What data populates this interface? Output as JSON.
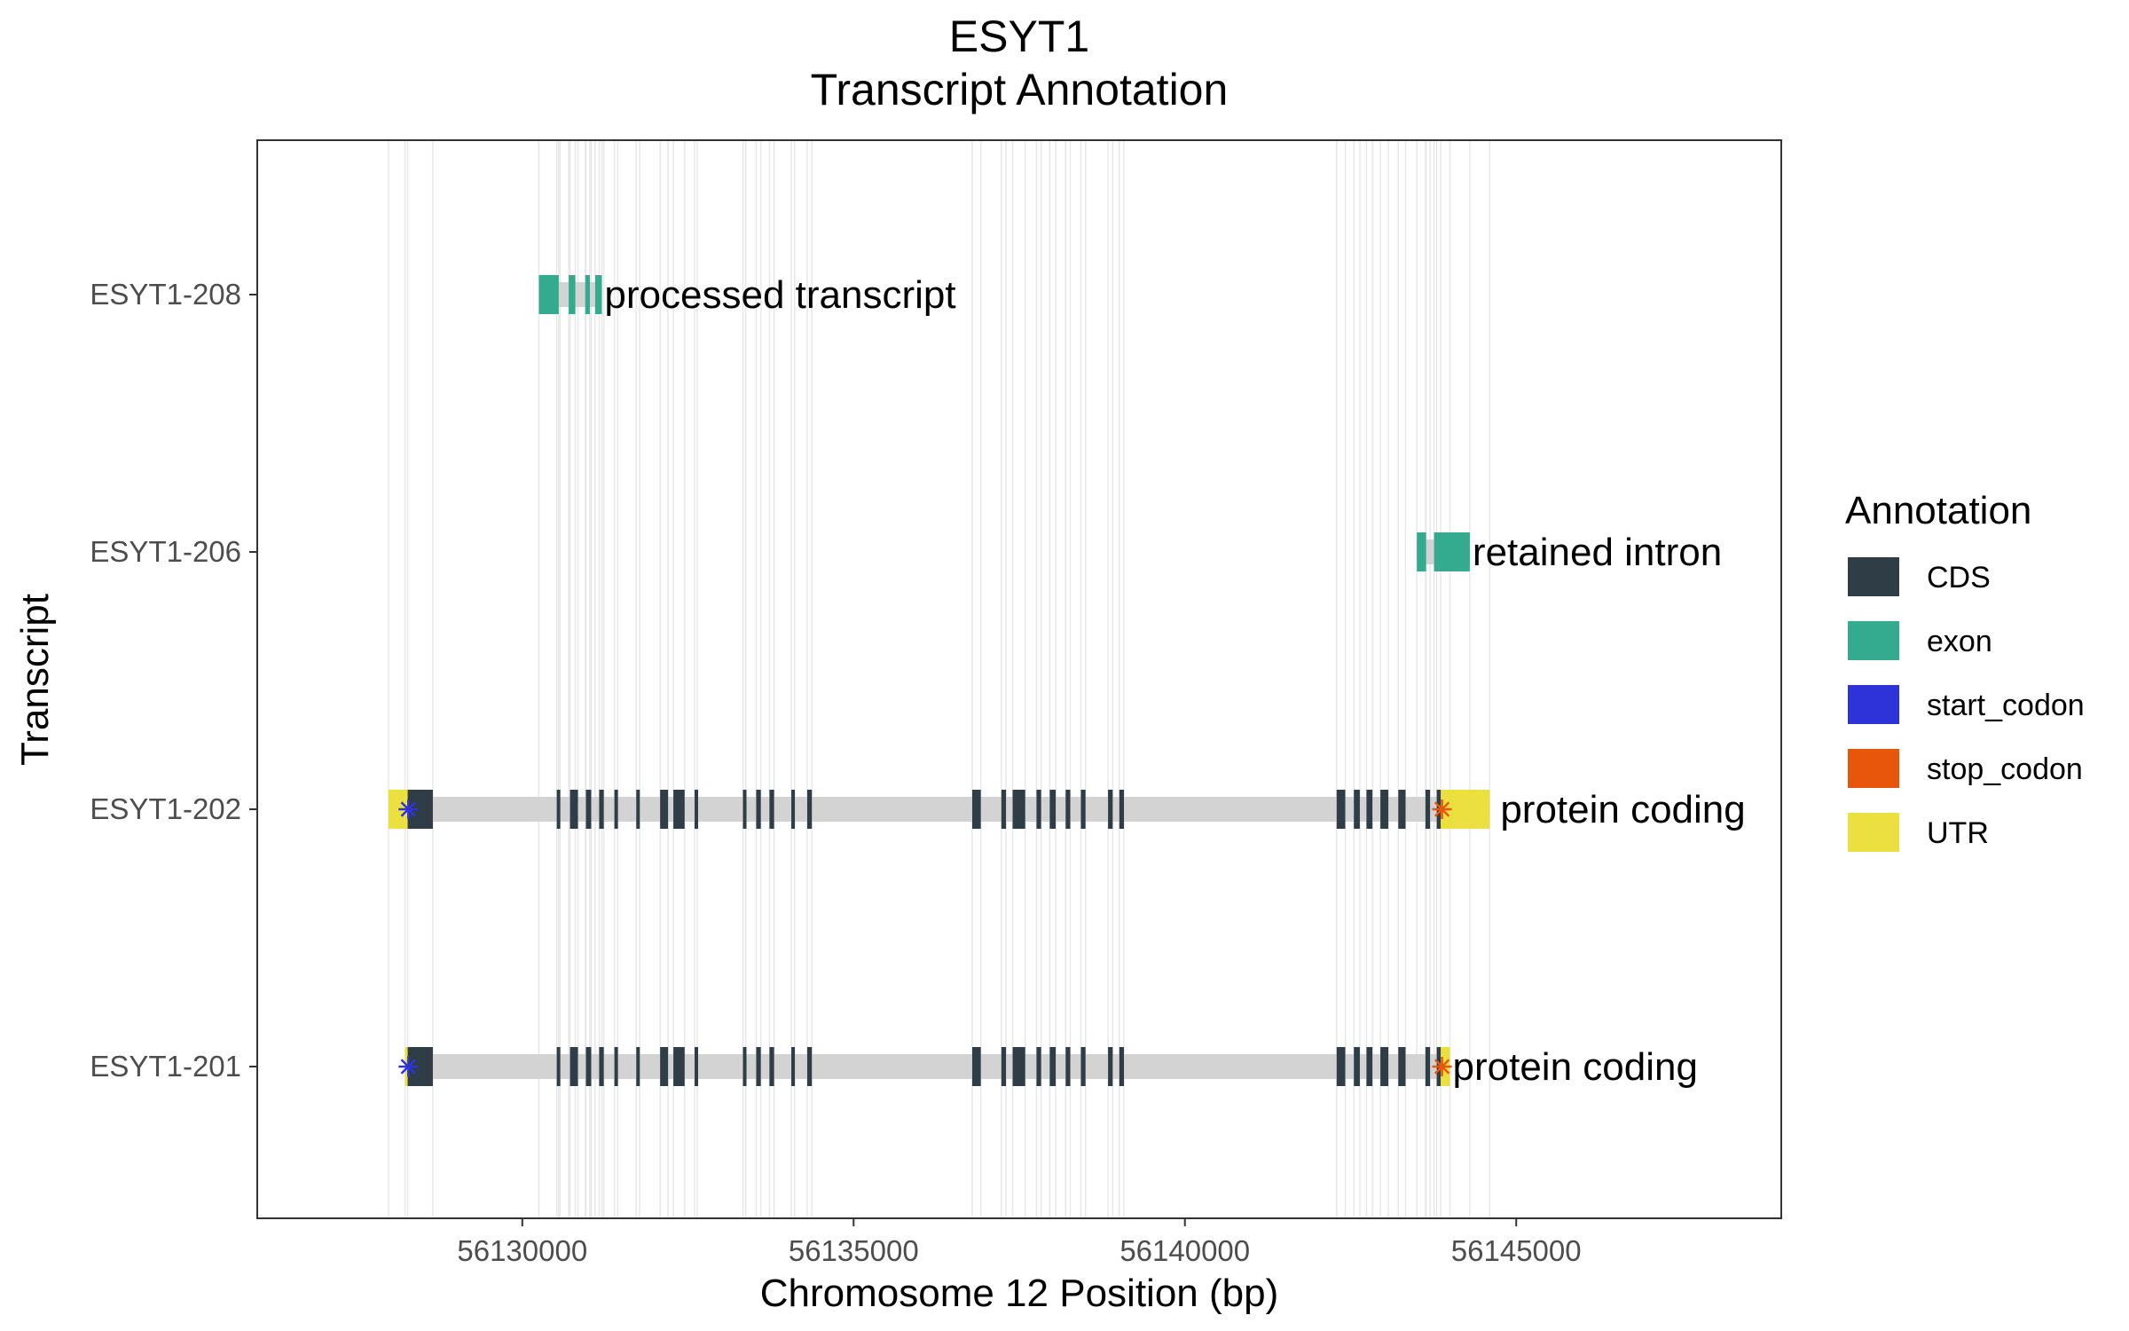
{
  "chart_data": {
    "type": "gene-structure",
    "title": [
      "ESYT1",
      "Transcript Annotation"
    ],
    "xlabel": "Chromosome 12 Position (bp)",
    "ylabel": "Transcript",
    "xlim": [
      56126000,
      56149000
    ],
    "x_ticks": [
      56130000,
      56135000,
      56140000,
      56145000
    ],
    "x_tick_labels": [
      "56130000",
      "56135000",
      "56140000",
      "56145000"
    ],
    "grid": "vertical lines at exon boundaries",
    "legend": {
      "title": "Annotation",
      "position": "right",
      "items": [
        {
          "key": "CDS",
          "label": "CDS",
          "color": "#2f3d47"
        },
        {
          "key": "exon",
          "label": "exon",
          "color": "#34ab8f"
        },
        {
          "key": "start_codon",
          "label": "start_codon",
          "color": "#2e33d9"
        },
        {
          "key": "stop_codon",
          "label": "stop_codon",
          "color": "#e8560c"
        },
        {
          "key": "UTR",
          "label": "UTR",
          "color": "#ebe040"
        }
      ]
    },
    "intron_color": "#d3d3d3",
    "grid_color": "#e8e8e8",
    "transcripts": [
      {
        "name": "ESYT1-208",
        "biotype": "processed transcript",
        "span": [
          56130250,
          56131200
        ],
        "features": [
          {
            "type": "exon",
            "start": 56130250,
            "end": 56130550
          },
          {
            "type": "exon",
            "start": 56130700,
            "end": 56130800
          },
          {
            "type": "exon",
            "start": 56130950,
            "end": 56131020
          },
          {
            "type": "exon",
            "start": 56131100,
            "end": 56131200
          }
        ]
      },
      {
        "name": "ESYT1-206",
        "biotype": "retained intron",
        "span": [
          56143500,
          56144300
        ],
        "features": [
          {
            "type": "exon",
            "start": 56143500,
            "end": 56143640
          },
          {
            "type": "exon",
            "start": 56143760,
            "end": 56144300
          }
        ]
      },
      {
        "name": "ESYT1-202",
        "biotype": "protein coding",
        "span": [
          56127980,
          56144600
        ],
        "features": [
          {
            "type": "UTR",
            "start": 56127980,
            "end": 56128270
          },
          {
            "type": "CDS",
            "start": 56128270,
            "end": 56128650
          },
          {
            "type": "CDS",
            "start": 56130520,
            "end": 56130570
          },
          {
            "type": "CDS",
            "start": 56130720,
            "end": 56130840
          },
          {
            "type": "CDS",
            "start": 56130960,
            "end": 56131040
          },
          {
            "type": "CDS",
            "start": 56131160,
            "end": 56131230
          },
          {
            "type": "CDS",
            "start": 56131390,
            "end": 56131440
          },
          {
            "type": "CDS",
            "start": 56131720,
            "end": 56131770
          },
          {
            "type": "CDS",
            "start": 56132080,
            "end": 56132200
          },
          {
            "type": "CDS",
            "start": 56132280,
            "end": 56132450
          },
          {
            "type": "CDS",
            "start": 56132600,
            "end": 56132640
          },
          {
            "type": "CDS",
            "start": 56133330,
            "end": 56133370
          },
          {
            "type": "CDS",
            "start": 56133530,
            "end": 56133600
          },
          {
            "type": "CDS",
            "start": 56133730,
            "end": 56133800
          },
          {
            "type": "CDS",
            "start": 56134060,
            "end": 56134110
          },
          {
            "type": "CDS",
            "start": 56134300,
            "end": 56134370
          },
          {
            "type": "CDS",
            "start": 56136790,
            "end": 56136920
          },
          {
            "type": "CDS",
            "start": 56137230,
            "end": 56137300
          },
          {
            "type": "CDS",
            "start": 56137400,
            "end": 56137590
          },
          {
            "type": "CDS",
            "start": 56137760,
            "end": 56137830
          },
          {
            "type": "CDS",
            "start": 56137960,
            "end": 56138050
          },
          {
            "type": "CDS",
            "start": 56138200,
            "end": 56138270
          },
          {
            "type": "CDS",
            "start": 56138430,
            "end": 56138500
          },
          {
            "type": "CDS",
            "start": 56138840,
            "end": 56138910
          },
          {
            "type": "CDS",
            "start": 56139010,
            "end": 56139080
          },
          {
            "type": "CDS",
            "start": 56142290,
            "end": 56142420
          },
          {
            "type": "CDS",
            "start": 56142550,
            "end": 56142640
          },
          {
            "type": "CDS",
            "start": 56142740,
            "end": 56142830
          },
          {
            "type": "CDS",
            "start": 56142950,
            "end": 56143070
          },
          {
            "type": "CDS",
            "start": 56143220,
            "end": 56143330
          },
          {
            "type": "CDS",
            "start": 56143630,
            "end": 56143700
          },
          {
            "type": "CDS",
            "start": 56143800,
            "end": 56143860
          },
          {
            "type": "UTR",
            "start": 56143860,
            "end": 56144600
          },
          {
            "type": "start_codon",
            "at": 56128280
          },
          {
            "type": "stop_codon",
            "at": 56143880
          }
        ]
      },
      {
        "name": "ESYT1-201",
        "biotype": "protein coding",
        "span": [
          56128230,
          56144000
        ],
        "features": [
          {
            "type": "UTR",
            "start": 56128230,
            "end": 56128270
          },
          {
            "type": "CDS",
            "start": 56128270,
            "end": 56128650
          },
          {
            "type": "CDS",
            "start": 56130520,
            "end": 56130570
          },
          {
            "type": "CDS",
            "start": 56130720,
            "end": 56130840
          },
          {
            "type": "CDS",
            "start": 56130960,
            "end": 56131040
          },
          {
            "type": "CDS",
            "start": 56131160,
            "end": 56131230
          },
          {
            "type": "CDS",
            "start": 56131390,
            "end": 56131440
          },
          {
            "type": "CDS",
            "start": 56131720,
            "end": 56131770
          },
          {
            "type": "CDS",
            "start": 56132080,
            "end": 56132200
          },
          {
            "type": "CDS",
            "start": 56132280,
            "end": 56132450
          },
          {
            "type": "CDS",
            "start": 56132600,
            "end": 56132640
          },
          {
            "type": "CDS",
            "start": 56133330,
            "end": 56133370
          },
          {
            "type": "CDS",
            "start": 56133530,
            "end": 56133600
          },
          {
            "type": "CDS",
            "start": 56133730,
            "end": 56133800
          },
          {
            "type": "CDS",
            "start": 56134060,
            "end": 56134110
          },
          {
            "type": "CDS",
            "start": 56134300,
            "end": 56134370
          },
          {
            "type": "CDS",
            "start": 56136790,
            "end": 56136920
          },
          {
            "type": "CDS",
            "start": 56137230,
            "end": 56137300
          },
          {
            "type": "CDS",
            "start": 56137400,
            "end": 56137590
          },
          {
            "type": "CDS",
            "start": 56137760,
            "end": 56137830
          },
          {
            "type": "CDS",
            "start": 56137960,
            "end": 56138050
          },
          {
            "type": "CDS",
            "start": 56138200,
            "end": 56138270
          },
          {
            "type": "CDS",
            "start": 56138430,
            "end": 56138500
          },
          {
            "type": "CDS",
            "start": 56138840,
            "end": 56138910
          },
          {
            "type": "CDS",
            "start": 56139010,
            "end": 56139080
          },
          {
            "type": "CDS",
            "start": 56142290,
            "end": 56142420
          },
          {
            "type": "CDS",
            "start": 56142550,
            "end": 56142640
          },
          {
            "type": "CDS",
            "start": 56142740,
            "end": 56142830
          },
          {
            "type": "CDS",
            "start": 56142950,
            "end": 56143070
          },
          {
            "type": "CDS",
            "start": 56143220,
            "end": 56143330
          },
          {
            "type": "CDS",
            "start": 56143630,
            "end": 56143700
          },
          {
            "type": "CDS",
            "start": 56143800,
            "end": 56143860
          },
          {
            "type": "UTR",
            "start": 56143860,
            "end": 56144000
          },
          {
            "type": "start_codon",
            "at": 56128280
          },
          {
            "type": "stop_codon",
            "at": 56143880
          }
        ]
      }
    ]
  }
}
